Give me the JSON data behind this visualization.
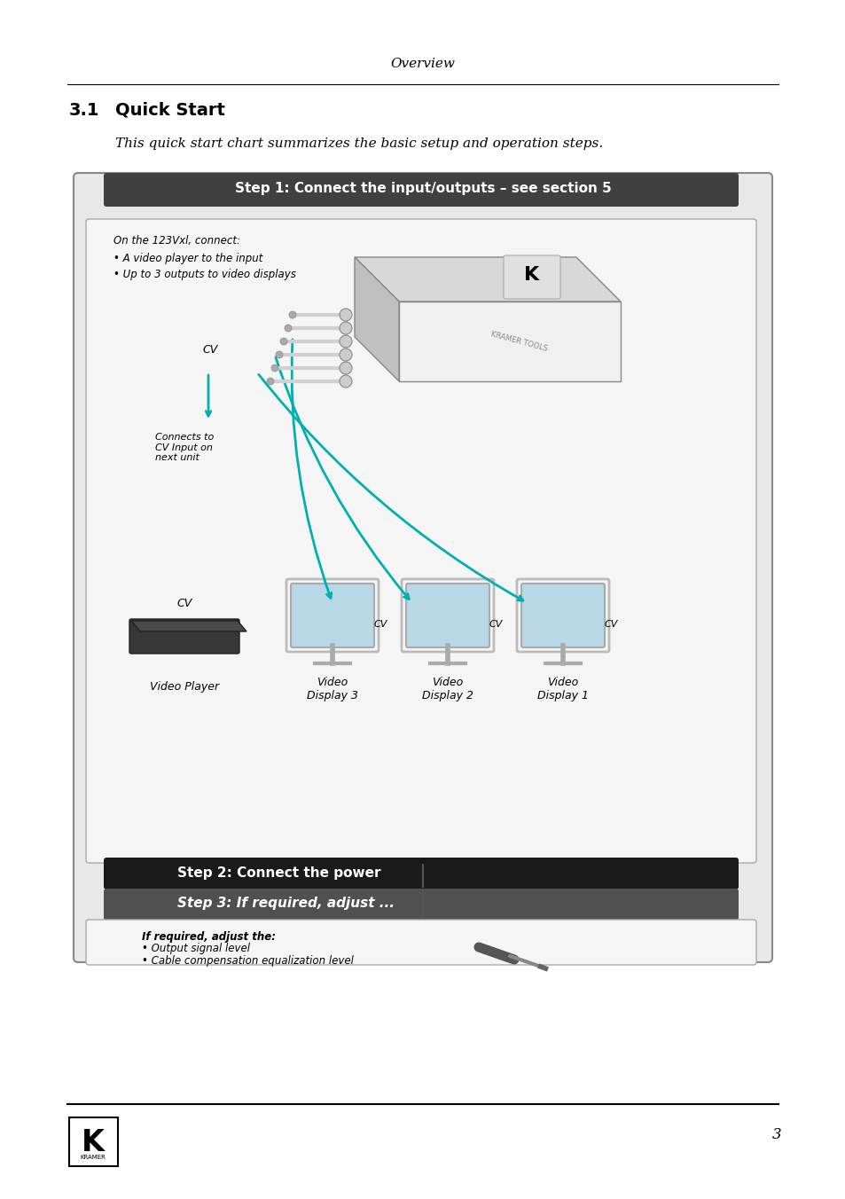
{
  "page_title": "Overview",
  "section_number": "3.1",
  "section_title": "Quick Start",
  "intro_text": "This quick start chart summarizes the basic setup and operation steps.",
  "step1_title": "Step 1: Connect the input/outputs – see section 5",
  "step2_title": "Step 2: Connect the power",
  "step3_title": "Step 3: If required, adjust ...",
  "note_title": "On the 123Vxl, connect:",
  "note_bullets": [
    "A video player to the input",
    "Up to 3 outputs to video displays"
  ],
  "cv_label": "CV",
  "connects_label": "Connects to\nCV Input on\nnext unit",
  "video_player_label": "Video Player",
  "display_labels": [
    "Video\nDisplay 3",
    "Video\nDisplay 2",
    "Video\nDisplay 1"
  ],
  "step3_note": "If required, adjust the:",
  "step3_bullets": [
    "Output signal level",
    "Cable compensation equalization level"
  ],
  "page_number": "3",
  "bg_color": "#ffffff",
  "outer_box_color": "#d0d0d0",
  "step1_header_color": "#404040",
  "step2_header_color": "#1a1a1a",
  "step3_header_color": "#505050",
  "cyan_color": "#00b0b0",
  "text_color": "#000000",
  "header_text_color": "#ffffff"
}
